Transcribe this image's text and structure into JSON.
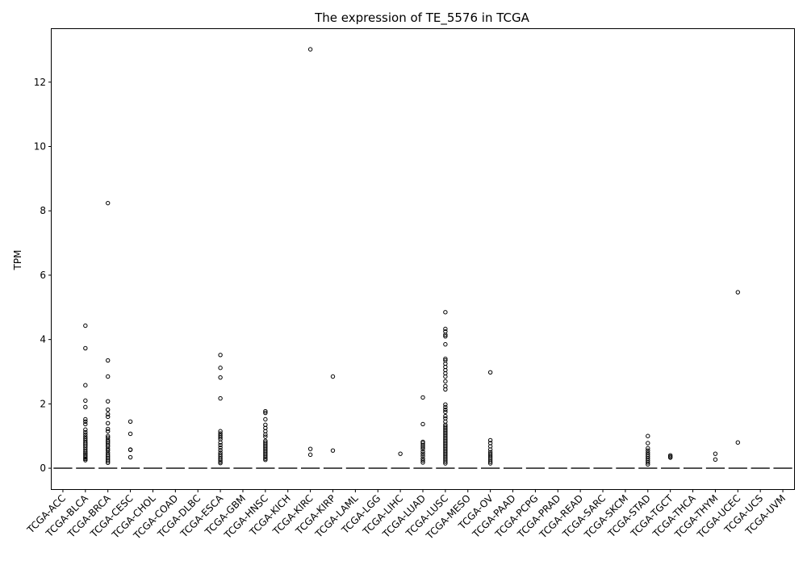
{
  "chart_data": {
    "type": "box",
    "title": "The expression of TE_5576 in TCGA",
    "xlabel": "",
    "ylabel": "TPM",
    "ylim": [
      -0.65,
      13.65
    ],
    "yticks": [
      0,
      2,
      4,
      6,
      8,
      10,
      12
    ],
    "grid": false,
    "legend": "none",
    "box_values": {
      "q1": 0,
      "median": 0,
      "q3": 0,
      "whisker_low": 0,
      "whisker_high": 0
    },
    "categories": [
      "TCGA-ACC",
      "TCGA-BLCA",
      "TCGA-BRCA",
      "TCGA-CESC",
      "TCGA-CHOL",
      "TCGA-COAD",
      "TCGA-DLBC",
      "TCGA-ESCA",
      "TCGA-GBM",
      "TCGA-HNSC",
      "TCGA-KICH",
      "TCGA-KIRC",
      "TCGA-KIRP",
      "TCGA-LAML",
      "TCGA-LGG",
      "TCGA-LIHC",
      "TCGA-LUAD",
      "TCGA-LUSC",
      "TCGA-MESO",
      "TCGA-OV",
      "TCGA-PAAD",
      "TCGA-PCPG",
      "TCGA-PRAD",
      "TCGA-READ",
      "TCGA-SARC",
      "TCGA-SKCM",
      "TCGA-STAD",
      "TCGA-TGCT",
      "TCGA-THCA",
      "TCGA-THYM",
      "TCGA-UCEC",
      "TCGA-UCS",
      "TCGA-UVM"
    ],
    "outliers": {
      "TCGA-BLCA": [
        4.43,
        3.73,
        2.58,
        2.1,
        1.9,
        1.52,
        1.45,
        1.37,
        1.2,
        1.12,
        1.05,
        0.98,
        0.92,
        0.86,
        0.8,
        0.75,
        0.7,
        0.64,
        0.58,
        0.52,
        0.47,
        0.43,
        0.38,
        0.33,
        0.29,
        0.25
      ],
      "TCGA-BRCA": [
        8.24,
        3.35,
        2.85,
        2.08,
        1.82,
        1.68,
        1.6,
        1.4,
        1.22,
        1.15,
        1.0,
        0.95,
        0.88,
        0.83,
        0.78,
        0.72,
        0.67,
        0.6,
        0.55,
        0.48,
        0.42,
        0.37,
        0.32,
        0.27,
        0.22,
        0.17
      ],
      "TCGA-CESC": [
        1.45,
        1.07,
        0.58,
        0.57,
        0.34
      ],
      "TCGA-ESCA": [
        3.52,
        3.12,
        2.82,
        2.17,
        1.15,
        1.08,
        1.02,
        0.96,
        0.9,
        0.8,
        0.72,
        0.64,
        0.56,
        0.48,
        0.42,
        0.36,
        0.3,
        0.25,
        0.2,
        0.16
      ],
      "TCGA-HNSC": [
        1.77,
        1.72,
        1.52,
        1.35,
        1.25,
        1.15,
        1.05,
        0.98,
        0.85,
        0.8,
        0.75,
        0.7,
        0.65,
        0.6,
        0.55,
        0.5,
        0.45,
        0.4,
        0.35,
        0.3,
        0.26
      ],
      "TCGA-KIRC": [
        13.02,
        0.6,
        0.42
      ],
      "TCGA-KIRP": [
        2.85,
        0.55
      ],
      "TCGA-LIHC": [
        0.45
      ],
      "TCGA-LUAD": [
        2.2,
        1.37,
        0.82,
        0.78,
        0.72,
        0.66,
        0.6,
        0.52,
        0.45,
        0.38,
        0.3,
        0.24,
        0.18
      ],
      "TCGA-LUSC": [
        4.85,
        4.33,
        4.25,
        4.15,
        4.1,
        3.85,
        3.4,
        3.35,
        3.25,
        3.15,
        3.05,
        2.95,
        2.85,
        2.7,
        2.55,
        2.45,
        1.98,
        1.9,
        1.82,
        1.75,
        1.62,
        1.55,
        1.45,
        1.35,
        1.3,
        1.25,
        1.2,
        1.15,
        1.1,
        1.05,
        1.0,
        0.95,
        0.9,
        0.85,
        0.8,
        0.75,
        0.7,
        0.65,
        0.6,
        0.55,
        0.5,
        0.45,
        0.4,
        0.35,
        0.3,
        0.25,
        0.2,
        0.15
      ],
      "TCGA-OV": [
        2.98,
        0.87,
        0.78,
        0.68,
        0.58,
        0.5,
        0.44,
        0.38,
        0.32,
        0.26,
        0.2,
        0.15
      ],
      "TCGA-STAD": [
        1.0,
        0.78,
        0.62,
        0.55,
        0.48,
        0.42,
        0.36,
        0.3,
        0.24,
        0.18,
        0.12
      ],
      "TCGA-TGCT": [
        0.4,
        0.36,
        0.33
      ],
      "TCGA-THYM": [
        0.45,
        0.27
      ],
      "TCGA-UCEC": [
        5.47,
        0.8
      ]
    }
  }
}
